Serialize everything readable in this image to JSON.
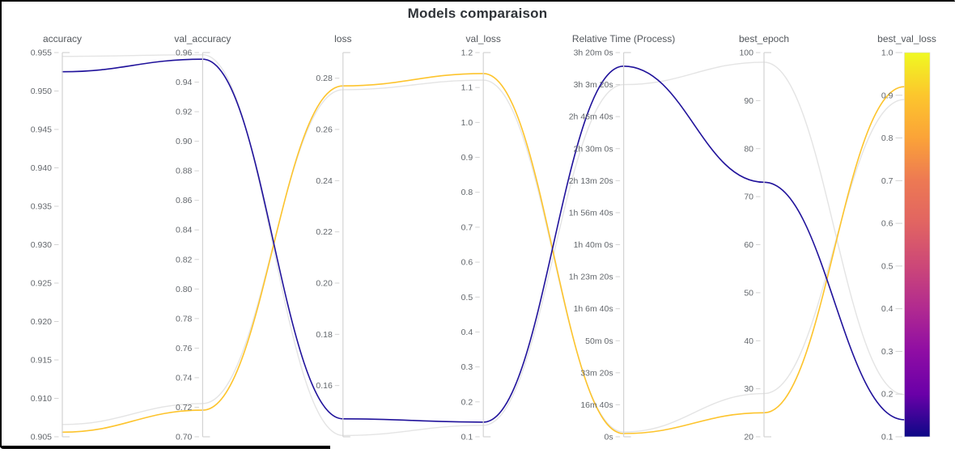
{
  "chart_data": {
    "type": "parallel-coordinates",
    "title": "Models comparaison",
    "grid": false,
    "legend": "none",
    "value_order": [
      "accuracy",
      "val_accuracy",
      "loss",
      "val_loss",
      "relative_time_seconds",
      "best_epoch",
      "best_val_loss"
    ],
    "axes": [
      {
        "label": "accuracy",
        "domain": [
          0.905,
          0.955
        ],
        "tick_values": [
          0.955,
          0.95,
          0.945,
          0.94,
          0.935,
          0.93,
          0.925,
          0.92,
          0.915,
          0.91,
          0.905
        ],
        "tick_labels": [
          "0.955",
          "0.950",
          "0.945",
          "0.940",
          "0.935",
          "0.930",
          "0.925",
          "0.920",
          "0.915",
          "0.910",
          "0.905"
        ]
      },
      {
        "label": "val_accuracy",
        "domain": [
          0.7,
          0.96
        ],
        "tick_values": [
          0.96,
          0.94,
          0.92,
          0.9,
          0.88,
          0.86,
          0.84,
          0.82,
          0.8,
          0.78,
          0.76,
          0.74,
          0.72,
          0.7
        ],
        "tick_labels": [
          "0.96",
          "0.94",
          "0.92",
          "0.90",
          "0.88",
          "0.86",
          "0.84",
          "0.82",
          "0.80",
          "0.78",
          "0.76",
          "0.74",
          "0.72",
          "0.70"
        ]
      },
      {
        "label": "loss",
        "domain": [
          0.14,
          0.29
        ],
        "tick_values": [
          0.28,
          0.26,
          0.24,
          0.22,
          0.2,
          0.18,
          0.16
        ],
        "tick_labels": [
          "0.28",
          "0.26",
          "0.24",
          "0.22",
          "0.20",
          "0.18",
          "0.16"
        ]
      },
      {
        "label": "val_loss",
        "domain": [
          0.1,
          1.2
        ],
        "tick_values": [
          1.2,
          1.1,
          1.0,
          0.9,
          0.8,
          0.7,
          0.6,
          0.5,
          0.4,
          0.3,
          0.2,
          0.1
        ],
        "tick_labels": [
          "1.2",
          "1.1",
          "1.0",
          "0.9",
          "0.8",
          "0.7",
          "0.6",
          "0.5",
          "0.4",
          "0.3",
          "0.2",
          "0.1"
        ]
      },
      {
        "label": "Relative Time (Process)",
        "domain": [
          0,
          12000
        ],
        "tick_values": [
          12000,
          11000,
          10000,
          9000,
          8000,
          7000,
          6000,
          5000,
          4000,
          3000,
          2000,
          1000,
          0
        ],
        "tick_labels": [
          "3h 20m 0s",
          "3h 3m 20s",
          "2h 46m 40s",
          "2h 30m 0s",
          "2h 13m 20s",
          "1h 56m 40s",
          "1h 40m 0s",
          "1h 23m 20s",
          "1h 6m 40s",
          "50m 0s",
          "33m 20s",
          "16m 40s",
          "0s"
        ]
      },
      {
        "label": "best_epoch",
        "domain": [
          20,
          100
        ],
        "tick_values": [
          100,
          90,
          80,
          70,
          60,
          50,
          40,
          30,
          20
        ],
        "tick_labels": [
          "100",
          "90",
          "80",
          "70",
          "60",
          "50",
          "40",
          "30",
          "20"
        ]
      }
    ],
    "colorbar": {
      "label": "best_val_loss",
      "domain": [
        0.1,
        1.0
      ],
      "tick_values": [
        1.0,
        0.9,
        0.8,
        0.7,
        0.6,
        0.5,
        0.4,
        0.3,
        0.2,
        0.1
      ],
      "tick_labels": [
        "1.0",
        "0.9",
        "0.8",
        "0.7",
        "0.6",
        "0.5",
        "0.4",
        "0.3",
        "0.2",
        "0.1"
      ],
      "colormap": "plasma",
      "gradient_top_to_bottom": [
        "#f0f921",
        "#fcc62d",
        "#fba338",
        "#ed7953",
        "#e16462",
        "#cc4778",
        "#b12a90",
        "#8f0da4",
        "#6a00a8",
        "#0d0887"
      ]
    },
    "series": [
      {
        "color": "#e4e4e4",
        "selected": false,
        "values": [
          0.9545,
          0.9585,
          0.1405,
          0.133,
          11000,
          98,
          0.199
        ]
      },
      {
        "color": "#e4e4e4",
        "selected": false,
        "values": [
          0.9066,
          0.7225,
          0.2755,
          1.121,
          150,
          29,
          0.89
        ]
      },
      {
        "color": "#fdc42d",
        "selected": true,
        "values": [
          0.9056,
          0.718,
          0.277,
          1.14,
          100,
          25,
          0.92
        ]
      },
      {
        "color": "#20129b",
        "selected": true,
        "values": [
          0.9525,
          0.9555,
          0.147,
          0.142,
          11575,
          73,
          0.14
        ]
      }
    ],
    "style": {
      "axis_line_color": "#d3d3d3",
      "tick_text_color": "#63676c",
      "axis_title_color": "#53575c",
      "title_color": "#2f3338",
      "background": "#ffffff",
      "frame_color": "#000000"
    }
  }
}
